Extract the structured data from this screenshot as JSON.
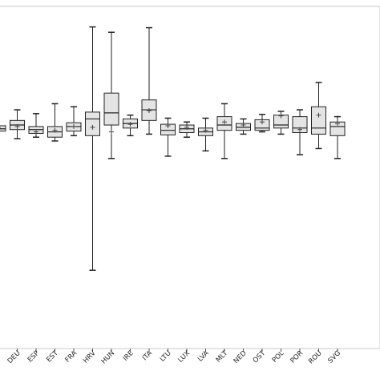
{
  "chart_data": {
    "type": "boxplot",
    "categories": [
      "",
      "DEU",
      "ESP",
      "EST",
      "FRA",
      "HRV",
      "HUN",
      "IRE",
      "ITA",
      "LTU",
      "LUX",
      "LVA",
      "MLT",
      "NED",
      "OST",
      "POL",
      "POR",
      "ROU",
      "SVG"
    ],
    "boxes": [
      {
        "min": null,
        "q1": 0.36,
        "median": 0.39,
        "q3": 0.43,
        "max": null,
        "mean": 0.4
      },
      {
        "min": 0.26,
        "q1": 0.38,
        "median": 0.44,
        "q3": 0.5,
        "max": 0.64,
        "mean": 0.42
      },
      {
        "min": 0.28,
        "q1": 0.33,
        "median": 0.38,
        "q3": 0.42,
        "max": 0.59,
        "mean": 0.35
      },
      {
        "min": 0.23,
        "q1": 0.28,
        "median": 0.35,
        "q3": 0.42,
        "max": 0.72,
        "mean": 0.37
      },
      {
        "min": 0.3,
        "q1": 0.36,
        "median": 0.42,
        "q3": 0.47,
        "max": 0.68,
        "mean": 0.42
      },
      {
        "min": -1.47,
        "q1": 0.3,
        "median": 0.52,
        "q3": 0.61,
        "max": 1.73,
        "mean": 0.41
      },
      {
        "min": 0.0,
        "q1": 0.44,
        "median": 0.6,
        "q3": 0.86,
        "max": 1.66,
        "mean": 0.35
      },
      {
        "min": 0.3,
        "q1": 0.4,
        "median": 0.46,
        "q3": 0.52,
        "max": 0.57,
        "mean": 0.45
      },
      {
        "min": 0.32,
        "q1": 0.5,
        "median": 0.64,
        "q3": 0.77,
        "max": 1.72,
        "mean": 0.63
      },
      {
        "min": 0.03,
        "q1": 0.31,
        "median": 0.37,
        "q3": 0.45,
        "max": 0.53,
        "mean": 0.43
      },
      {
        "min": 0.28,
        "q1": 0.34,
        "median": 0.39,
        "q3": 0.44,
        "max": 0.48,
        "mean": 0.41
      },
      {
        "min": 0.1,
        "q1": 0.3,
        "median": 0.35,
        "q3": 0.4,
        "max": 0.53,
        "mean": 0.37
      },
      {
        "min": 0.0,
        "q1": 0.37,
        "median": 0.44,
        "q3": 0.55,
        "max": 0.72,
        "mean": 0.48
      },
      {
        "min": 0.32,
        "q1": 0.37,
        "median": 0.41,
        "q3": 0.46,
        "max": 0.52,
        "mean": 0.44
      },
      {
        "min": 0.35,
        "q1": 0.37,
        "median": 0.4,
        "q3": 0.51,
        "max": 0.58,
        "mean": 0.48
      },
      {
        "min": 0.32,
        "q1": 0.4,
        "median": 0.44,
        "q3": 0.57,
        "max": 0.62,
        "mean": 0.56
      },
      {
        "min": 0.05,
        "q1": 0.34,
        "median": 0.4,
        "q3": 0.55,
        "max": 0.64,
        "mean": 0.38
      },
      {
        "min": 0.13,
        "q1": 0.32,
        "median": 0.4,
        "q3": 0.68,
        "max": 1.0,
        "mean": 0.57
      },
      {
        "min": 0.0,
        "q1": 0.3,
        "median": 0.42,
        "q3": 0.48,
        "max": 0.55,
        "mean": 0.46
      }
    ],
    "ylim": [
      -2.5,
      2.0
    ],
    "grid": false,
    "colors": {
      "box_fill": "#e4e4e4",
      "stroke": "#222222",
      "frame": "#c8c8c8"
    }
  }
}
